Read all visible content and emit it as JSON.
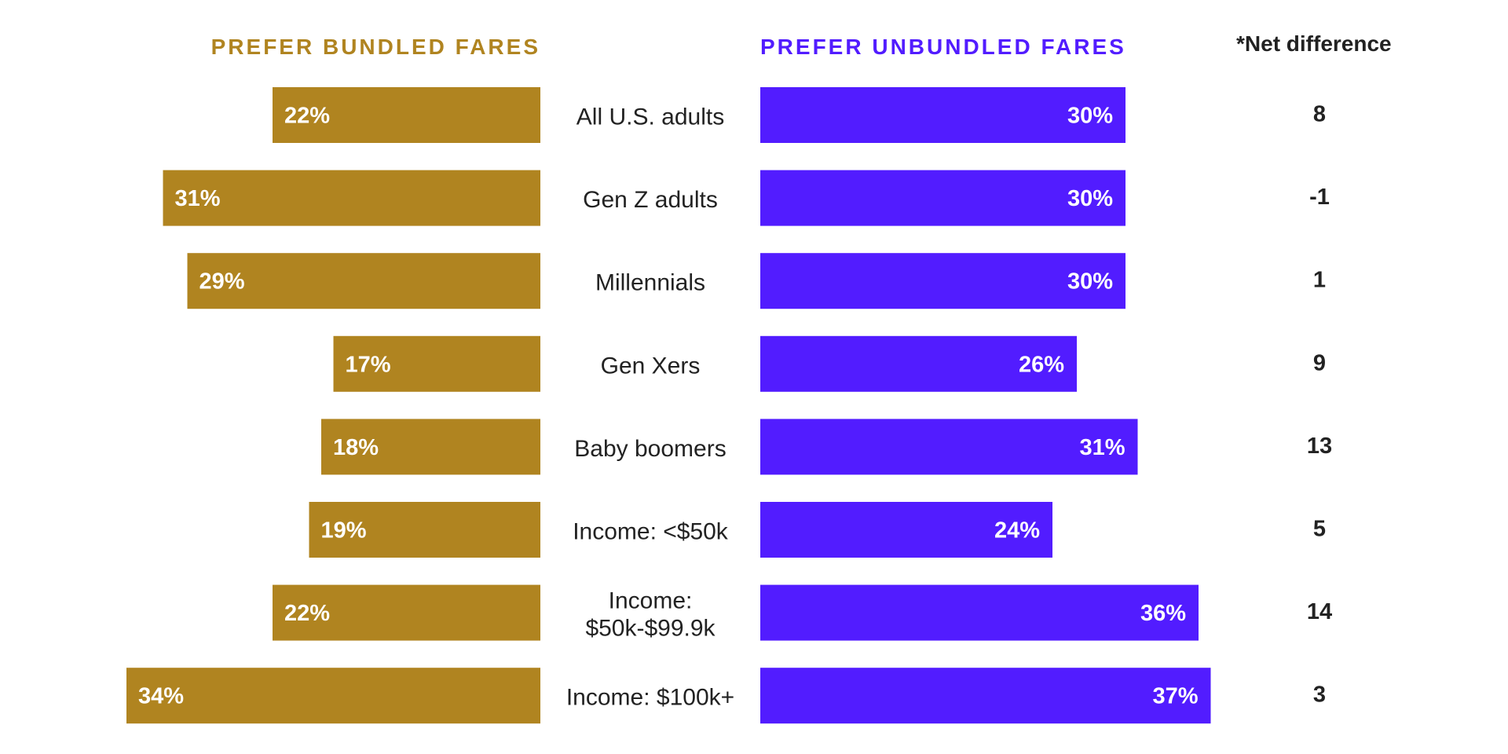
{
  "colors": {
    "bundled": "#b08420",
    "unbundled": "#521cff",
    "text": "#222222",
    "bar_label": "#ffffff"
  },
  "headers": {
    "left": "PREFER BUNDLED FARES",
    "right": "PREFER UNBUNDLED FARES",
    "net": "*Net difference"
  },
  "chart_data": {
    "type": "bar",
    "orientation": "horizontal-diverging",
    "categories": [
      [
        "All U.S. adults"
      ],
      [
        "Gen Z adults"
      ],
      [
        "Millennials"
      ],
      [
        "Gen Xers"
      ],
      [
        "Baby boomers"
      ],
      [
        "Income: <$50k"
      ],
      [
        "Income:",
        "$50k-$99.9k"
      ],
      [
        "Income: $100k+"
      ]
    ],
    "series": [
      {
        "name": "PREFER BUNDLED FARES",
        "values": [
          22,
          31,
          29,
          17,
          18,
          19,
          22,
          34
        ],
        "labels": [
          "22%",
          "31%",
          "29%",
          "17%",
          "18%",
          "19%",
          "22%",
          "34%"
        ]
      },
      {
        "name": "PREFER UNBUNDLED FARES",
        "values": [
          30,
          30,
          30,
          26,
          31,
          24,
          36,
          37
        ],
        "labels": [
          "30%",
          "30%",
          "30%",
          "26%",
          "31%",
          "24%",
          "36%",
          "37%"
        ]
      }
    ],
    "net_difference": {
      "title": "*Net difference",
      "values": [
        "8",
        "-1",
        "1",
        "9",
        "13",
        "5",
        "14",
        "3"
      ]
    },
    "legend": "none",
    "grid": false
  }
}
